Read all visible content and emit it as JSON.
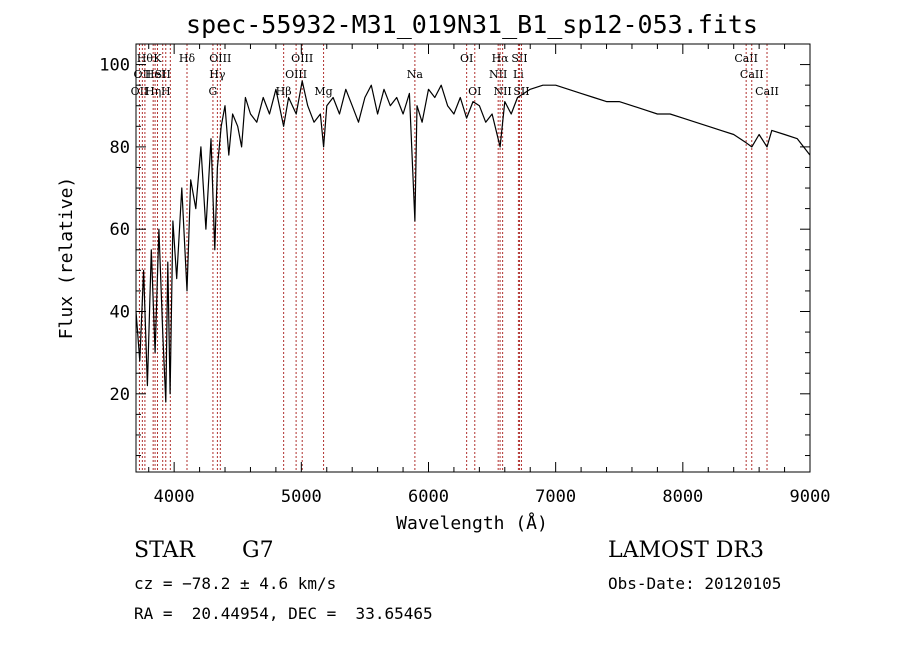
{
  "chart_data": {
    "type": "line",
    "title": "spec-55932-M31_019N31_B1_sp12-053.fits",
    "xlabel": "Wavelength (Å)",
    "ylabel": "Flux (relative)",
    "xlim": [
      3700,
      9000
    ],
    "ylim": [
      1,
      105
    ],
    "xticks": [
      4000,
      5000,
      6000,
      7000,
      8000,
      9000
    ],
    "xtick_labels": [
      "4000",
      "5000",
      "6000",
      "7000",
      "8000",
      "9000"
    ],
    "yticks": [
      20,
      40,
      60,
      80,
      100
    ],
    "ytick_labels": [
      "20",
      "40",
      "60",
      "80",
      "100"
    ],
    "spectrum": {
      "name": "flux",
      "x": [
        3700,
        3730,
        3760,
        3790,
        3820,
        3850,
        3880,
        3910,
        3934,
        3950,
        3968,
        3990,
        4020,
        4060,
        4101,
        4130,
        4170,
        4210,
        4250,
        4290,
        4320,
        4340,
        4370,
        4400,
        4430,
        4460,
        4500,
        4530,
        4560,
        4600,
        4650,
        4700,
        4750,
        4800,
        4861,
        4900,
        4960,
        5007,
        5050,
        5100,
        5150,
        5175,
        5200,
        5250,
        5300,
        5350,
        5400,
        5450,
        5500,
        5550,
        5600,
        5650,
        5700,
        5750,
        5800,
        5850,
        5893,
        5910,
        5950,
        6000,
        6050,
        6100,
        6150,
        6200,
        6250,
        6300,
        6350,
        6400,
        6450,
        6500,
        6563,
        6600,
        6650,
        6700,
        6750,
        6800,
        6900,
        7000,
        7100,
        7200,
        7300,
        7400,
        7500,
        7600,
        7700,
        7800,
        7900,
        8000,
        8100,
        8200,
        8300,
        8400,
        8498,
        8542,
        8600,
        8662,
        8700,
        8800,
        8900,
        8950,
        9000
      ],
      "y": [
        40,
        28,
        50,
        22,
        55,
        30,
        60,
        35,
        18,
        52,
        20,
        62,
        48,
        70,
        45,
        72,
        65,
        80,
        60,
        82,
        55,
        75,
        85,
        90,
        78,
        88,
        85,
        80,
        92,
        88,
        86,
        92,
        88,
        94,
        85,
        92,
        88,
        96,
        90,
        86,
        88,
        80,
        90,
        92,
        88,
        94,
        90,
        86,
        92,
        95,
        88,
        94,
        90,
        92,
        88,
        93,
        62,
        90,
        86,
        94,
        92,
        95,
        90,
        88,
        92,
        87,
        91,
        90,
        86,
        88,
        80,
        91,
        88,
        92,
        93,
        94,
        95,
        95,
        94,
        93,
        92,
        91,
        91,
        90,
        89,
        88,
        88,
        87,
        86,
        85,
        84,
        83,
        81,
        80,
        83,
        80,
        84,
        83,
        82,
        80,
        78
      ]
    },
    "lines": [
      {
        "wave": 3727,
        "label": "OII",
        "row": 3
      },
      {
        "wave": 3750,
        "label": "OII",
        "row": 2
      },
      {
        "wave": 3770,
        "label": "Hθ",
        "row": 1
      },
      {
        "wave": 3835,
        "label": "Hη",
        "row": 3
      },
      {
        "wave": 3850,
        "label": "HeI",
        "row": 2
      },
      {
        "wave": 3869,
        "label": "K",
        "row": 1
      },
      {
        "wave": 3910,
        "label": "SII",
        "row": 2
      },
      {
        "wave": 3934,
        "label": "H",
        "row": 3
      },
      {
        "wave": 3970,
        "label": "",
        "row": 0
      },
      {
        "wave": 4101,
        "label": "Hδ",
        "row": 1
      },
      {
        "wave": 4305,
        "label": "G",
        "row": 3
      },
      {
        "wave": 4340,
        "label": "Hγ",
        "row": 2
      },
      {
        "wave": 4363,
        "label": "OIII",
        "row": 1
      },
      {
        "wave": 4861,
        "label": "Hβ",
        "row": 3
      },
      {
        "wave": 4959,
        "label": "OIII",
        "row": 2
      },
      {
        "wave": 5007,
        "label": "OIII",
        "row": 1
      },
      {
        "wave": 5175,
        "label": "Mg",
        "row": 3
      },
      {
        "wave": 5893,
        "label": "Na",
        "row": 2
      },
      {
        "wave": 6300,
        "label": "OI",
        "row": 1
      },
      {
        "wave": 6364,
        "label": "OI",
        "row": 3
      },
      {
        "wave": 6548,
        "label": "NII",
        "row": 2
      },
      {
        "wave": 6563,
        "label": "Hα",
        "row": 1
      },
      {
        "wave": 6583,
        "label": "NII",
        "row": 3
      },
      {
        "wave": 6707,
        "label": "Li",
        "row": 2
      },
      {
        "wave": 6716,
        "label": "SII",
        "row": 1
      },
      {
        "wave": 6731,
        "label": "SII",
        "row": 3
      },
      {
        "wave": 8498,
        "label": "CaII",
        "row": 1
      },
      {
        "wave": 8542,
        "label": "CaII",
        "row": 2
      },
      {
        "wave": 8662,
        "label": "CaII",
        "row": 3
      }
    ],
    "line_color": "#b0302e",
    "spectrum_color": "#000000"
  },
  "info": {
    "class": "STAR",
    "subclass": "G7",
    "survey": "LAMOST DR3",
    "redshift": "cz = −78.2 ± 4.6 km/s",
    "obs_date": "Obs-Date: 20120105",
    "coords": "RA =  20.44954, DEC =  33.65465"
  }
}
